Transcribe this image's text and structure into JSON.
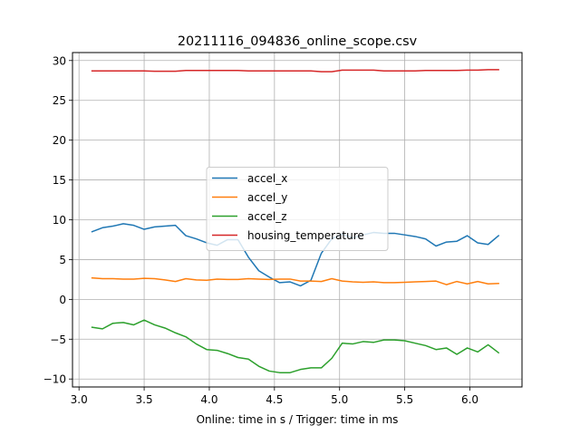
{
  "chart_data": {
    "type": "line",
    "title": "20211116_094836_online_scope.csv",
    "xlabel": "Online: time in s / Trigger: time in ms",
    "ylabel": "",
    "xlim": [
      2.95,
      6.4
    ],
    "ylim": [
      -11.0,
      31.0
    ],
    "xticks": [
      3.0,
      3.5,
      4.0,
      4.5,
      5.0,
      5.5,
      6.0
    ],
    "xtick_labels": [
      "3.0",
      "3.5",
      "4.0",
      "4.5",
      "5.0",
      "5.5",
      "6.0"
    ],
    "yticks": [
      -10,
      -5,
      0,
      5,
      10,
      15,
      20,
      25,
      30
    ],
    "ytick_labels": [
      "−10",
      "−5",
      "0",
      "5",
      "10",
      "15",
      "20",
      "25",
      "30"
    ],
    "grid": true,
    "legend_position": "center",
    "x": [
      3.1,
      3.18,
      3.26,
      3.34,
      3.42,
      3.5,
      3.58,
      3.66,
      3.74,
      3.82,
      3.9,
      3.98,
      4.06,
      4.14,
      4.22,
      4.3,
      4.38,
      4.46,
      4.54,
      4.62,
      4.7,
      4.78,
      4.86,
      4.94,
      5.02,
      5.1,
      5.18,
      5.26,
      5.34,
      5.42,
      5.5,
      5.58,
      5.66,
      5.74,
      5.82,
      5.9,
      5.98,
      6.06,
      6.14,
      6.22
    ],
    "series": [
      {
        "name": "accel_x",
        "color": "#1f77b4",
        "values": [
          8.5,
          9.0,
          9.2,
          9.5,
          9.3,
          8.8,
          9.1,
          9.2,
          9.3,
          8.0,
          7.6,
          7.1,
          6.8,
          7.5,
          7.5,
          5.3,
          3.6,
          2.8,
          2.1,
          2.2,
          1.7,
          2.4,
          5.8,
          7.6,
          8.2,
          7.7,
          8.1,
          8.4,
          8.3,
          8.3,
          8.1,
          7.9,
          7.6,
          6.7,
          7.2,
          7.3,
          8.0,
          7.1,
          6.9,
          8.0
        ]
      },
      {
        "name": "accel_y",
        "color": "#ff7f0e",
        "values": [
          2.7,
          2.6,
          2.6,
          2.55,
          2.55,
          2.65,
          2.6,
          2.45,
          2.25,
          2.6,
          2.45,
          2.4,
          2.55,
          2.5,
          2.5,
          2.6,
          2.55,
          2.5,
          2.55,
          2.55,
          2.3,
          2.3,
          2.25,
          2.6,
          2.3,
          2.2,
          2.15,
          2.2,
          2.1,
          2.1,
          2.15,
          2.2,
          2.25,
          2.3,
          1.85,
          2.25,
          1.95,
          2.25,
          1.95,
          2.0
        ]
      },
      {
        "name": "accel_z",
        "color": "#2ca02c",
        "values": [
          -3.5,
          -3.7,
          -3.0,
          -2.9,
          -3.2,
          -2.6,
          -3.2,
          -3.6,
          -4.2,
          -4.7,
          -5.6,
          -6.3,
          -6.4,
          -6.8,
          -7.3,
          -7.5,
          -8.4,
          -9.0,
          -9.2,
          -9.2,
          -8.8,
          -8.6,
          -8.6,
          -7.4,
          -5.5,
          -5.6,
          -5.3,
          -5.4,
          -5.1,
          -5.1,
          -5.2,
          -5.5,
          -5.8,
          -6.3,
          -6.1,
          -6.9,
          -6.1,
          -6.6,
          -5.7,
          -6.7
        ]
      },
      {
        "name": "housing_temperature",
        "color": "#d62728",
        "values": [
          28.7,
          28.7,
          28.7,
          28.7,
          28.7,
          28.7,
          28.65,
          28.65,
          28.65,
          28.75,
          28.75,
          28.75,
          28.75,
          28.75,
          28.75,
          28.7,
          28.7,
          28.7,
          28.7,
          28.7,
          28.7,
          28.7,
          28.6,
          28.6,
          28.8,
          28.8,
          28.8,
          28.8,
          28.7,
          28.7,
          28.7,
          28.7,
          28.75,
          28.75,
          28.75,
          28.75,
          28.8,
          28.8,
          28.85,
          28.85
        ]
      }
    ]
  }
}
